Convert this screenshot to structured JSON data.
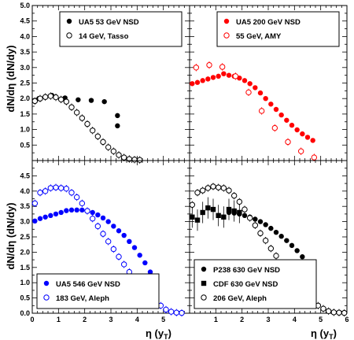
{
  "figure": {
    "y_label_top": "dN/dη (dN/dy)",
    "y_label_bottom": "dN/dη (dN/dy)",
    "x_label_left": "η (y",
    "x_label_right": "η (y",
    "x_label_sub": "T",
    "x_label_close": ")"
  },
  "chart_data": [
    {
      "type": "scatter",
      "panel": "top-left",
      "xlim": [
        0,
        6
      ],
      "ylim": [
        0,
        5
      ],
      "x_ticks": [],
      "y_ticks": [
        "0.5",
        "1.0",
        "1.5",
        "2.0",
        "2.5",
        "3.0",
        "3.5",
        "4.0",
        "4.5",
        "5.0"
      ],
      "legend_position": "top-right",
      "series": [
        {
          "name": "UA5 53 GeV NSD",
          "marker": "filled-circle",
          "color": "#000000",
          "x": [
            0.25,
            0.75,
            1.25,
            1.75,
            2.25,
            2.75,
            3.25
          ],
          "y": [
            2.0,
            2.1,
            2.02,
            1.96,
            1.94,
            1.9,
            1.45
          ],
          "x2": [
            3.25
          ],
          "y2": [
            1.12
          ]
        },
        {
          "name": "14 GeV, Tasso",
          "marker": "open-circle",
          "color": "#000000",
          "x": [
            0.1,
            0.3,
            0.5,
            0.7,
            0.9,
            1.1,
            1.3,
            1.5,
            1.7,
            1.9,
            2.1,
            2.3,
            2.5,
            2.7,
            2.9,
            3.1,
            3.3,
            3.5,
            3.7,
            3.9,
            4.1
          ],
          "y": [
            1.92,
            2.0,
            2.05,
            2.08,
            2.04,
            1.97,
            1.9,
            1.72,
            1.55,
            1.37,
            1.18,
            0.97,
            0.78,
            0.6,
            0.43,
            0.3,
            0.18,
            0.1,
            0.05,
            0.03,
            0.02
          ]
        }
      ]
    },
    {
      "type": "scatter",
      "panel": "top-right",
      "xlim": [
        0,
        6
      ],
      "ylim": [
        0,
        5
      ],
      "legend_position": "top-right",
      "series": [
        {
          "name": "UA5 200 GeV NSD",
          "marker": "filled-circle",
          "color": "#ff0000",
          "x": [
            0.1,
            0.3,
            0.5,
            0.7,
            0.9,
            1.1,
            1.3,
            1.5,
            1.7,
            1.9,
            2.1,
            2.3,
            2.5,
            2.7,
            2.9,
            3.1,
            3.3,
            3.5,
            3.7,
            3.9,
            4.1,
            4.3,
            4.5,
            4.7
          ],
          "y": [
            2.48,
            2.52,
            2.58,
            2.63,
            2.68,
            2.72,
            2.8,
            2.75,
            2.72,
            2.66,
            2.58,
            2.48,
            2.35,
            2.18,
            2.0,
            1.82,
            1.65,
            1.47,
            1.3,
            1.14,
            0.99,
            0.86,
            0.75,
            0.65
          ]
        },
        {
          "name": "55 GeV, AMY",
          "marker": "open-circle",
          "color": "#ff0000",
          "x": [
            0.25,
            0.75,
            1.25,
            1.75,
            2.25,
            2.75,
            3.25,
            3.75,
            4.25,
            4.75
          ],
          "y": [
            3.0,
            3.08,
            3.02,
            2.72,
            2.2,
            1.6,
            1.05,
            0.6,
            0.3,
            0.1
          ]
        }
      ]
    },
    {
      "type": "scatter",
      "panel": "bottom-left",
      "xlim": [
        0,
        6
      ],
      "ylim": [
        0,
        5
      ],
      "x_ticks": [
        "0",
        "1",
        "2",
        "3",
        "4",
        "5"
      ],
      "y_ticks": [
        "0.0",
        "0.5",
        "1.0",
        "1.5",
        "2.0",
        "2.5",
        "3.0",
        "3.5",
        "4.0",
        "4.5"
      ],
      "legend_position": "bottom-left",
      "series": [
        {
          "name": "UA5 546 GeV NSD",
          "marker": "filled-circle",
          "color": "#0000ff",
          "x": [
            0.1,
            0.3,
            0.5,
            0.7,
            0.9,
            1.1,
            1.3,
            1.5,
            1.7,
            1.9,
            2.1,
            2.3,
            2.5,
            2.7,
            2.9,
            3.1,
            3.3,
            3.5,
            3.7,
            3.9,
            4.1,
            4.3,
            4.5,
            4.7
          ],
          "y": [
            3.02,
            3.1,
            3.15,
            3.2,
            3.25,
            3.3,
            3.36,
            3.38,
            3.38,
            3.38,
            3.36,
            3.3,
            3.22,
            3.12,
            3.0,
            2.85,
            2.7,
            2.55,
            2.35,
            2.15,
            1.9,
            1.65,
            1.35,
            1.05
          ]
        },
        {
          "name": "183 GeV, Aleph",
          "marker": "open-circle",
          "color": "#0000ff",
          "x": [
            0.1,
            0.3,
            0.5,
            0.7,
            0.9,
            1.1,
            1.3,
            1.5,
            1.7,
            1.9,
            2.1,
            2.3,
            2.5,
            2.7,
            2.9,
            3.1,
            3.3,
            3.5,
            3.7,
            3.9,
            4.1,
            4.3,
            4.5,
            4.7,
            4.9,
            5.1,
            5.3,
            5.5,
            5.7
          ],
          "y": [
            3.6,
            3.95,
            4.0,
            4.1,
            4.12,
            4.1,
            4.08,
            3.95,
            3.8,
            3.6,
            3.35,
            3.1,
            2.85,
            2.6,
            2.35,
            2.1,
            1.85,
            1.6,
            1.35,
            1.12,
            0.9,
            0.7,
            0.52,
            0.37,
            0.25,
            0.12,
            0.05,
            0.02,
            0.01
          ]
        }
      ]
    },
    {
      "type": "scatter",
      "panel": "bottom-right",
      "xlim": [
        0,
        6
      ],
      "ylim": [
        0,
        5
      ],
      "x_ticks": [
        "1",
        "2",
        "3",
        "4",
        "5",
        "6"
      ],
      "legend_position": "bottom-left",
      "series": [
        {
          "name": "P238 630 GeV NSD",
          "marker": "filled-circle",
          "color": "#000000",
          "x": [
            1.5,
            1.7,
            1.9,
            2.1,
            2.3,
            2.5,
            2.7,
            2.9,
            3.1,
            3.3,
            3.5,
            3.7,
            3.9,
            4.1,
            4.3,
            4.5,
            4.7
          ],
          "y": [
            3.3,
            3.28,
            3.25,
            3.2,
            3.15,
            3.08,
            3.0,
            2.9,
            2.78,
            2.65,
            2.52,
            2.38,
            2.22,
            2.05,
            1.85,
            1.62,
            1.35
          ]
        },
        {
          "name": "CDF 630 GeV NSD",
          "marker": "filled-square",
          "color": "#000000",
          "x": [
            0.1,
            0.3,
            0.5,
            0.7,
            0.9,
            1.1,
            1.3,
            1.5,
            1.7,
            1.9
          ],
          "y": [
            3.15,
            3.05,
            3.3,
            3.45,
            3.4,
            3.2,
            3.15,
            3.4,
            3.35,
            3.3
          ]
        },
        {
          "name": "206 GeV, Aleph",
          "marker": "open-circle",
          "color": "#000000",
          "x": [
            0.1,
            0.3,
            0.5,
            0.7,
            0.9,
            1.1,
            1.3,
            1.5,
            1.7,
            1.9,
            2.1,
            2.3,
            2.5,
            2.7,
            2.9,
            3.1,
            3.3,
            3.5,
            3.7,
            3.9,
            4.1,
            4.3,
            4.5,
            4.7,
            4.9,
            5.1,
            5.3,
            5.5,
            5.7,
            5.9
          ],
          "y": [
            3.55,
            3.95,
            4.02,
            4.1,
            4.15,
            4.12,
            4.1,
            4.02,
            3.85,
            3.65,
            3.4,
            3.12,
            2.88,
            2.62,
            2.38,
            2.12,
            1.88,
            1.62,
            1.38,
            1.15,
            0.92,
            0.72,
            0.55,
            0.38,
            0.25,
            0.15,
            0.07,
            0.03,
            0.02,
            0.01
          ]
        }
      ]
    }
  ]
}
